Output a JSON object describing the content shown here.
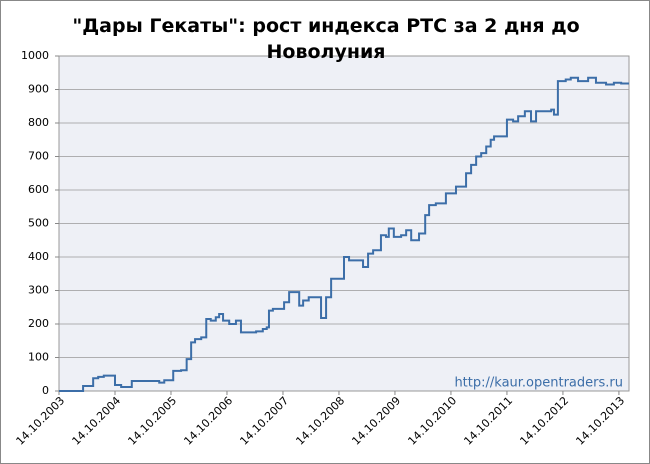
{
  "chart_data": {
    "type": "line",
    "title": "\"Дары Гекаты\": рост индекса РТС за 2 дня до Новолуния",
    "annotation": "http://kaur.opentraders.ru",
    "step": true,
    "grid": true,
    "x": [
      2003.79,
      2004.22,
      2004.4,
      2004.49,
      2004.59,
      2004.79,
      2004.9,
      2005.09,
      2005.58,
      2005.67,
      2005.83,
      2005.97,
      2006.07,
      2006.15,
      2006.22,
      2006.33,
      2006.42,
      2006.5,
      2006.59,
      2006.65,
      2006.72,
      2006.83,
      2006.95,
      2007.04,
      2007.31,
      2007.43,
      2007.5,
      2007.54,
      2007.61,
      2007.81,
      2007.9,
      2008.08,
      2008.15,
      2008.25,
      2008.47,
      2008.56,
      2008.65,
      2008.88,
      2008.97,
      2009.22,
      2009.31,
      2009.4,
      2009.54,
      2009.63,
      2009.68,
      2009.77,
      2009.9,
      2009.99,
      2010.08,
      2010.22,
      2010.33,
      2010.4,
      2010.52,
      2010.7,
      2010.88,
      2011.06,
      2011.15,
      2011.24,
      2011.33,
      2011.42,
      2011.5,
      2011.56,
      2011.79,
      2011.9,
      2011.99,
      2012.11,
      2012.22,
      2012.31,
      2012.58,
      2012.63,
      2012.7,
      2012.84,
      2012.93,
      2013.06,
      2013.24,
      2013.38,
      2013.56,
      2013.7,
      2013.83,
      2013.97
    ],
    "series": [
      {
        "color": "#3c6ea8",
        "values": [
          0,
          15,
          38,
          42,
          46,
          18,
          12,
          30,
          25,
          32,
          60,
          62,
          95,
          145,
          155,
          160,
          215,
          210,
          220,
          230,
          210,
          200,
          210,
          175,
          178,
          185,
          190,
          240,
          245,
          265,
          295,
          255,
          270,
          280,
          218,
          280,
          335,
          400,
          390,
          370,
          410,
          420,
          465,
          460,
          485,
          460,
          465,
          480,
          450,
          470,
          525,
          555,
          560,
          590,
          610,
          650,
          675,
          700,
          710,
          730,
          750,
          760,
          810,
          805,
          820,
          835,
          805,
          835,
          840,
          825,
          925,
          930,
          935,
          925,
          935,
          920,
          915,
          920,
          918,
          918
        ]
      }
    ],
    "xlim": [
      2003.79,
      2013.97
    ],
    "xticks": [
      {
        "value": 2003.79,
        "label": "14.10.2003"
      },
      {
        "value": 2004.79,
        "label": "14.10.2004"
      },
      {
        "value": 2005.79,
        "label": "14.10.2005"
      },
      {
        "value": 2006.79,
        "label": "14.10.2006"
      },
      {
        "value": 2007.79,
        "label": "14.10.2007"
      },
      {
        "value": 2008.79,
        "label": "14.10.2008"
      },
      {
        "value": 2009.79,
        "label": "14.10.2009"
      },
      {
        "value": 2010.79,
        "label": "14.10.2010"
      },
      {
        "value": 2011.79,
        "label": "14.10.2011"
      },
      {
        "value": 2012.79,
        "label": "14.10.2012"
      },
      {
        "value": 2013.79,
        "label": "14.10.2013"
      }
    ],
    "ylim": [
      0,
      1000
    ],
    "yticks": [
      0,
      100,
      200,
      300,
      400,
      500,
      600,
      700,
      800,
      900,
      1000
    ]
  }
}
